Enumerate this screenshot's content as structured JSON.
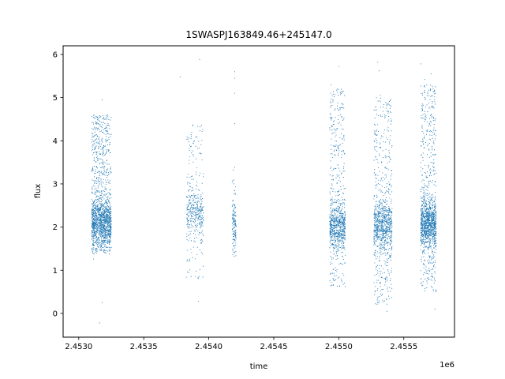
{
  "chart_data": {
    "type": "scatter",
    "title": "1SWASPJ163849.46+245147.0",
    "xlabel": "time",
    "ylabel": "flux",
    "x_offset_label": "1e6",
    "x_range": [
      2.45288,
      2.45589
    ],
    "y_range": [
      -0.55,
      6.2
    ],
    "x_ticks": [
      2.453,
      2.4535,
      2.454,
      2.4545,
      2.455,
      2.4555
    ],
    "x_tick_labels": [
      "2.4530",
      "2.4535",
      "2.4540",
      "2.4545",
      "2.4550",
      "2.4555"
    ],
    "y_ticks": [
      0,
      1,
      2,
      3,
      4,
      5,
      6
    ],
    "y_tick_labels": [
      "0",
      "1",
      "2",
      "3",
      "4",
      "5",
      "6"
    ],
    "grid": false,
    "marker_color": "#1f77b4",
    "clusters": [
      {
        "x_min": 2.4531,
        "x_max": 2.45325,
        "y_center": 2.1,
        "y_low": 1.4,
        "y_high": 4.6,
        "count": 1600
      },
      {
        "x_min": 2.45383,
        "x_max": 2.45396,
        "y_center": 2.3,
        "y_low": 0.8,
        "y_high": 4.4,
        "count": 420
      },
      {
        "x_min": 2.45418,
        "x_max": 2.45421,
        "y_center": 2.0,
        "y_low": 1.3,
        "y_high": 3.4,
        "count": 140
      },
      {
        "x_min": 2.45493,
        "x_max": 2.45505,
        "y_center": 2.0,
        "y_low": 0.6,
        "y_high": 5.2,
        "count": 900
      },
      {
        "x_min": 2.45527,
        "x_max": 2.45541,
        "y_center": 2.0,
        "y_low": 0.2,
        "y_high": 5.0,
        "count": 1000
      },
      {
        "x_min": 2.45563,
        "x_max": 2.45575,
        "y_center": 2.1,
        "y_low": 0.5,
        "y_high": 5.3,
        "count": 1300
      }
    ],
    "outliers": [
      {
        "x": 2.45316,
        "y": -0.22
      },
      {
        "x": 2.45318,
        "y": 0.25
      },
      {
        "x": 2.45318,
        "y": 4.95
      },
      {
        "x": 2.45378,
        "y": 5.48
      },
      {
        "x": 2.45393,
        "y": 5.88
      },
      {
        "x": 2.45392,
        "y": 0.28
      },
      {
        "x": 2.4542,
        "y": 5.6
      },
      {
        "x": 2.4542,
        "y": 5.45
      },
      {
        "x": 2.4542,
        "y": 5.1
      },
      {
        "x": 2.4542,
        "y": 4.4
      },
      {
        "x": 2.455,
        "y": 5.72
      },
      {
        "x": 2.45494,
        "y": 5.3
      },
      {
        "x": 2.4553,
        "y": 5.82
      },
      {
        "x": 2.45531,
        "y": 5.62
      },
      {
        "x": 2.45532,
        "y": 5.05
      },
      {
        "x": 2.45537,
        "y": 0.05
      },
      {
        "x": 2.45563,
        "y": 5.78
      },
      {
        "x": 2.45566,
        "y": 5.42
      },
      {
        "x": 2.45571,
        "y": 5.55
      },
      {
        "x": 2.45574,
        "y": 0.1
      }
    ]
  }
}
